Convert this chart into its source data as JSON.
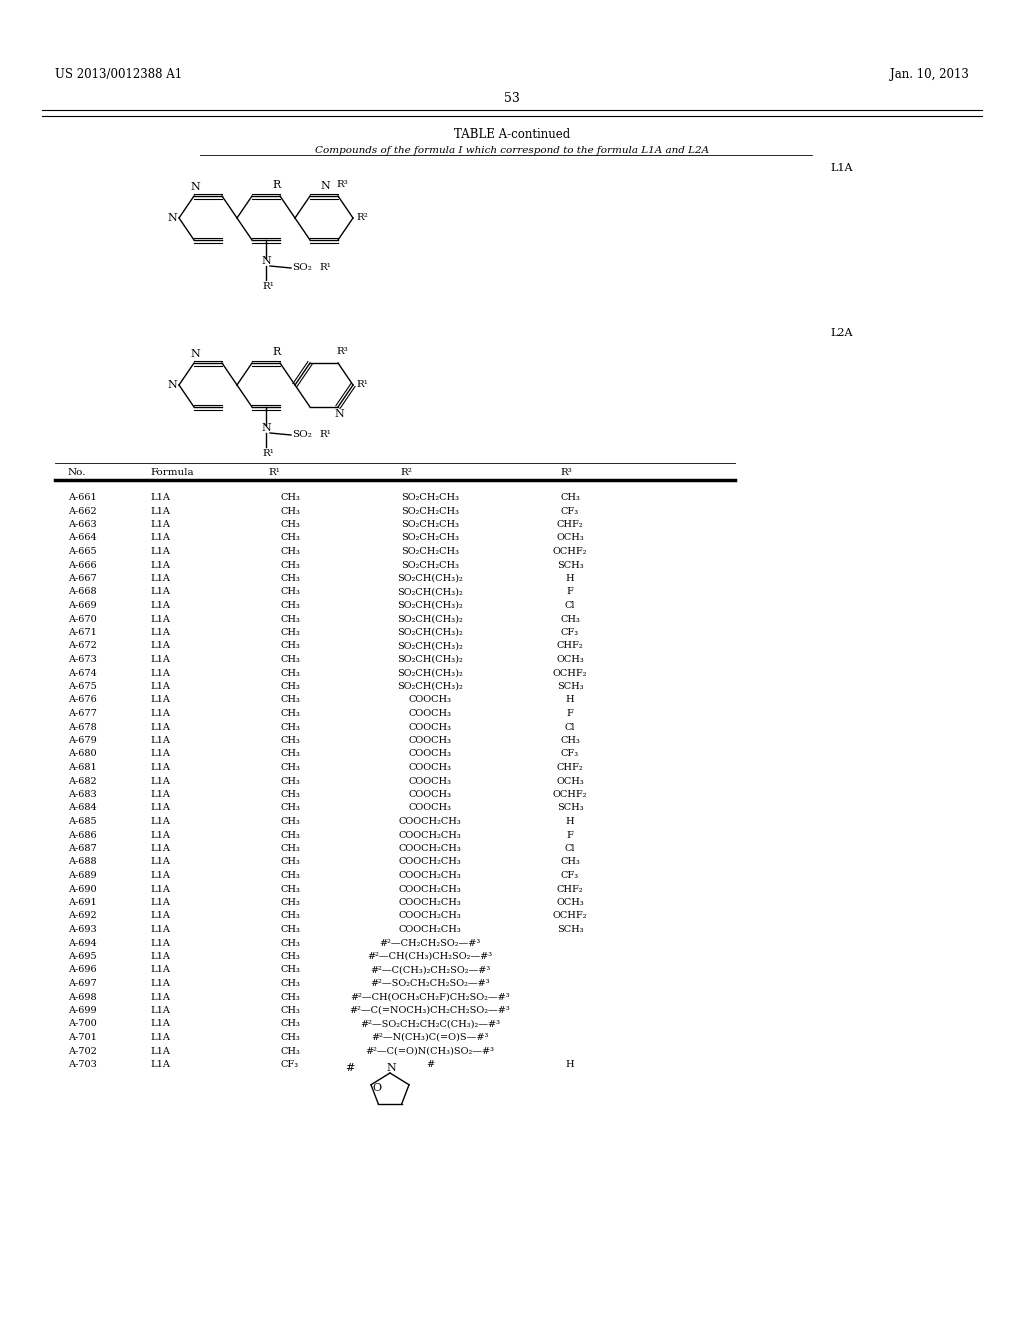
{
  "header_left": "US 2013/0012388 A1",
  "header_right": "Jan. 10, 2013",
  "page_number": "53",
  "table_title": "TABLE A-continued",
  "table_subtitle": "Compounds of the formula I which correspond to the formula L1A and L2A",
  "formula_label_1": "L1A",
  "formula_label_2": "L2A",
  "col_headers": [
    "No.",
    "Formula",
    "R¹",
    "R²",
    "R³"
  ],
  "rows": [
    [
      "A-661",
      "L1A",
      "CH₃",
      "SO₂CH₂CH₃",
      "CH₃"
    ],
    [
      "A-662",
      "L1A",
      "CH₃",
      "SO₂CH₂CH₃",
      "CF₃"
    ],
    [
      "A-663",
      "L1A",
      "CH₃",
      "SO₂CH₂CH₃",
      "CHF₂"
    ],
    [
      "A-664",
      "L1A",
      "CH₃",
      "SO₂CH₂CH₃",
      "OCH₃"
    ],
    [
      "A-665",
      "L1A",
      "CH₃",
      "SO₂CH₂CH₃",
      "OCHF₂"
    ],
    [
      "A-666",
      "L1A",
      "CH₃",
      "SO₂CH₂CH₃",
      "SCH₃"
    ],
    [
      "A-667",
      "L1A",
      "CH₃",
      "SO₂CH(CH₃)₂",
      "H"
    ],
    [
      "A-668",
      "L1A",
      "CH₃",
      "SO₂CH(CH₃)₂",
      "F"
    ],
    [
      "A-669",
      "L1A",
      "CH₃",
      "SO₂CH(CH₃)₂",
      "Cl"
    ],
    [
      "A-670",
      "L1A",
      "CH₃",
      "SO₂CH(CH₃)₂",
      "CH₃"
    ],
    [
      "A-671",
      "L1A",
      "CH₃",
      "SO₂CH(CH₃)₂",
      "CF₃"
    ],
    [
      "A-672",
      "L1A",
      "CH₃",
      "SO₂CH(CH₃)₂",
      "CHF₂"
    ],
    [
      "A-673",
      "L1A",
      "CH₃",
      "SO₂CH(CH₃)₂",
      "OCH₃"
    ],
    [
      "A-674",
      "L1A",
      "CH₃",
      "SO₂CH(CH₃)₂",
      "OCHF₂"
    ],
    [
      "A-675",
      "L1A",
      "CH₃",
      "SO₂CH(CH₃)₂",
      "SCH₃"
    ],
    [
      "A-676",
      "L1A",
      "CH₃",
      "COOCH₃",
      "H"
    ],
    [
      "A-677",
      "L1A",
      "CH₃",
      "COOCH₃",
      "F"
    ],
    [
      "A-678",
      "L1A",
      "CH₃",
      "COOCH₃",
      "Cl"
    ],
    [
      "A-679",
      "L1A",
      "CH₃",
      "COOCH₃",
      "CH₃"
    ],
    [
      "A-680",
      "L1A",
      "CH₃",
      "COOCH₃",
      "CF₃"
    ],
    [
      "A-681",
      "L1A",
      "CH₃",
      "COOCH₃",
      "CHF₂"
    ],
    [
      "A-682",
      "L1A",
      "CH₃",
      "COOCH₃",
      "OCH₃"
    ],
    [
      "A-683",
      "L1A",
      "CH₃",
      "COOCH₃",
      "OCHF₂"
    ],
    [
      "A-684",
      "L1A",
      "CH₃",
      "COOCH₃",
      "SCH₃"
    ],
    [
      "A-685",
      "L1A",
      "CH₃",
      "COOCH₂CH₃",
      "H"
    ],
    [
      "A-686",
      "L1A",
      "CH₃",
      "COOCH₂CH₃",
      "F"
    ],
    [
      "A-687",
      "L1A",
      "CH₃",
      "COOCH₂CH₃",
      "Cl"
    ],
    [
      "A-688",
      "L1A",
      "CH₃",
      "COOCH₂CH₃",
      "CH₃"
    ],
    [
      "A-689",
      "L1A",
      "CH₃",
      "COOCH₂CH₃",
      "CF₃"
    ],
    [
      "A-690",
      "L1A",
      "CH₃",
      "COOCH₂CH₃",
      "CHF₂"
    ],
    [
      "A-691",
      "L1A",
      "CH₃",
      "COOCH₂CH₃",
      "OCH₃"
    ],
    [
      "A-692",
      "L1A",
      "CH₃",
      "COOCH₂CH₃",
      "OCHF₂"
    ],
    [
      "A-693",
      "L1A",
      "CH₃",
      "COOCH₂CH₃",
      "SCH₃"
    ],
    [
      "A-694",
      "L1A",
      "CH₃",
      "#²—CH₂CH₂SO₂—#³",
      ""
    ],
    [
      "A-695",
      "L1A",
      "CH₃",
      "#²—CH(CH₃)CH₂SO₂—#³",
      ""
    ],
    [
      "A-696",
      "L1A",
      "CH₃",
      "#²—C(CH₃)₂CH₂SO₂—#³",
      ""
    ],
    [
      "A-697",
      "L1A",
      "CH₃",
      "#²—SO₂CH₂CH₂SO₂—#³",
      ""
    ],
    [
      "A-698",
      "L1A",
      "CH₃",
      "#²—CH(OCH₃CH₂F)CH₂SO₂—#³",
      ""
    ],
    [
      "A-699",
      "L1A",
      "CH₃",
      "#²—C(=NOCH₃)CH₂CH₂SO₂—#³",
      ""
    ],
    [
      "A-700",
      "L1A",
      "CH₃",
      "#²—SO₂CH₂CH₂C(CH₃)₂—#³",
      ""
    ],
    [
      "A-701",
      "L1A",
      "CH₃",
      "#²—N(CH₃)C(=O)S—#³",
      ""
    ],
    [
      "A-702",
      "L1A",
      "CH₃",
      "#²—C(=O)N(CH₃)SO₂—#³",
      ""
    ],
    [
      "A-703",
      "L1A",
      "CF₃",
      "#",
      "H"
    ]
  ],
  "bg_color": "#ffffff",
  "text_color": "#000000",
  "font_size": 7.5,
  "line_color": "#000000"
}
